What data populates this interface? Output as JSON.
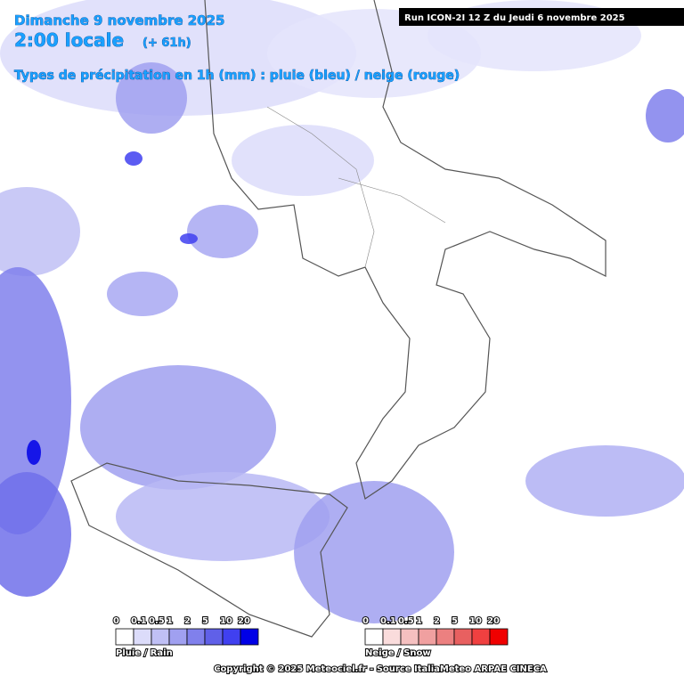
{
  "header": {
    "date": "Dimanche 9 novembre 2025",
    "time": "2:00 locale",
    "offset": "(+ 61h)",
    "subtitle": "Types de précipitation en 1h (mm) : pluie (bleu) / neige (rouge)",
    "run": "Run ICON-2I 12 Z du Jeudi 6 novembre 2025"
  },
  "legends": [
    {
      "label": "Pluie / Rain",
      "ticks": [
        0,
        0.1,
        0.5,
        1,
        2,
        5,
        10,
        20
      ],
      "colors": [
        "#ffffff",
        "#dcdcfa",
        "#c0c0f5",
        "#a0a0f0",
        "#8080ec",
        "#6060e8",
        "#4040f0",
        "#0000e6"
      ]
    },
    {
      "label": "Neige / Snow",
      "ticks": [
        0,
        0.1,
        0.5,
        1,
        2,
        5,
        10,
        20
      ],
      "colors": [
        "#ffffff",
        "#fadcdc",
        "#f5c0c0",
        "#f0a0a0",
        "#ec8080",
        "#e86060",
        "#f04040",
        "#f00000"
      ]
    }
  ],
  "footer": "Copyright © 2025 Meteociel.fr - Source ItaliaMeteo ARPAE CINECA"
}
